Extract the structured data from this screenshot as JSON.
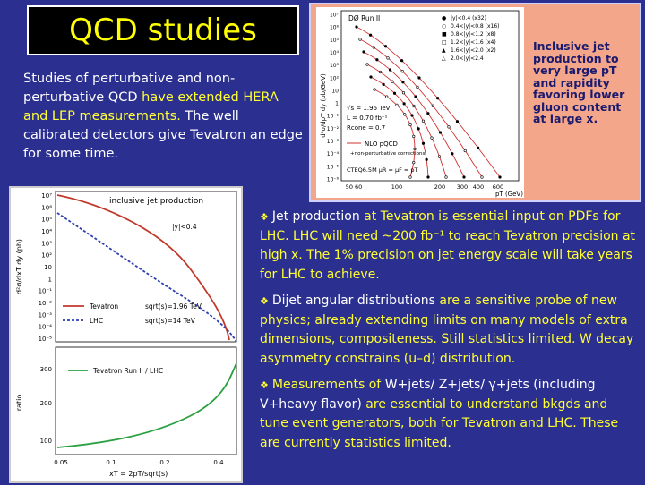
{
  "title": "QCD studies",
  "intro": {
    "part1": "Studies of perturbative and non-perturbative QCD ",
    "part2": "have extended HERA and LEP measurements.",
    "part3": "  The well calibrated detectors give Tevatron an edge for some time."
  },
  "fig1": {
    "caption": "Inclusive jet production to very large pT and rapidity favoring lower gluon content at large x.",
    "experiment": "DØ Run II",
    "ylabel": "d²σ/dpT dy (pb/GeV)",
    "xlabel": "pT (GeV)",
    "legend": [
      "|y|<0.4 (x32)",
      "0.4<|y|<0.8 (x16)",
      "0.8<|y|<1.2 (x8)",
      "1.2<|y|<1.6 (x4)",
      "1.6<|y|<2.0 (x2)",
      "2.0<|y|<2.4"
    ],
    "info": [
      "√s = 1.96 TeV",
      "L = 0.70 fb⁻¹",
      "Rcone = 0.7"
    ],
    "nlo": [
      "NLO pQCD",
      "+non-perturbative corrections"
    ],
    "pdf": "CTEQ6.5M   μR = μF = pT",
    "yticks": [
      "10⁷",
      "10⁶",
      "10⁵",
      "10⁴",
      "10³",
      "10²",
      "10",
      "1",
      "10⁻¹",
      "10⁻²",
      "10⁻³",
      "10⁻⁴",
      "10⁻⁵",
      "10⁻⁶"
    ],
    "xticks": [
      "50 60",
      "100",
      "200",
      "300",
      "400",
      "600"
    ]
  },
  "fig2": {
    "title": "inclusive jet production",
    "rapidity": "|y|<0.4",
    "ylabel_top": "d²σ/dxT dy  (pb)",
    "ylabel_bottom": "ratio",
    "xlabel": "xT = 2pT/sqrt(s)",
    "legend": [
      {
        "name": "Tevatron",
        "energy": "sqrt(s)=1.96 TeV",
        "color": "#c0392b"
      },
      {
        "name": "LHC",
        "energy": "sqrt(s)=14 TeV",
        "color": "#2e3fb0"
      }
    ],
    "ratio_legend": "Tevatron Run II  /  LHC",
    "ratio_color": "#2aa040",
    "yticks_top": [
      "10⁷",
      "10⁶",
      "10⁵",
      "10⁴",
      "10³",
      "10²",
      "10",
      "1",
      "10⁻¹",
      "10⁻²",
      "10⁻³",
      "10⁻⁴",
      "10⁻⁵"
    ],
    "yticks_bottom": [
      "300",
      "200",
      "100"
    ],
    "xticks": [
      "0.05",
      "0.1",
      "0.2",
      "0.4"
    ]
  },
  "bullets": [
    {
      "head": "Jet production",
      "body": " at Tevatron is essential input on PDFs for LHC. LHC will need ~200 fb⁻¹ to reach Tevatron precision at high x.  The 1% precision on jet energy scale will take years for LHC to achieve."
    },
    {
      "head": "Dijet angular distributions",
      "body": " are a sensitive probe of new physics; already extending limits on many models of extra dimensions, compositeness.  Still statistics limited. W decay asymmetry constrains (u–d) distribution."
    },
    {
      "pre": "Measurements of ",
      "head": "W+jets/ Z+jets/ γ+jets (including V+heavy flavor)",
      "body": " are essential to understand bkgds and tune event generators, both for Tevatron and LHC.  These are currently statistics limited."
    }
  ]
}
